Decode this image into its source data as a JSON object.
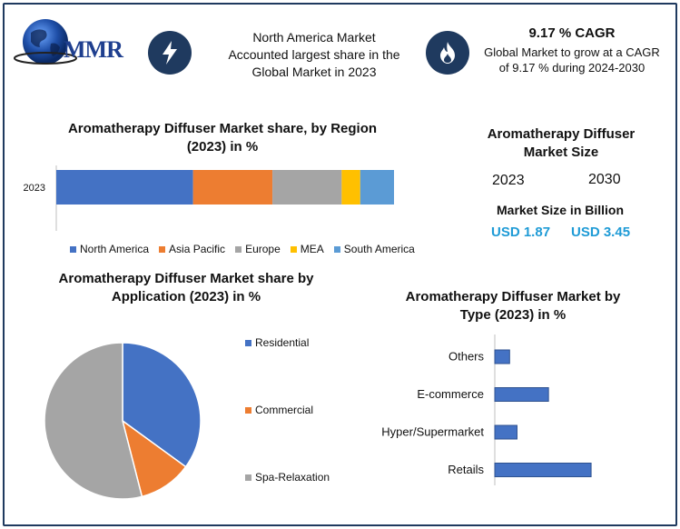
{
  "logo": {
    "text": "MMR"
  },
  "header": {
    "block1": {
      "icon": "lightning-icon",
      "text": "North America Market Accounted largest share in the Global Market in 2023"
    },
    "block2": {
      "icon": "flame-icon",
      "title": "9.17 % CAGR",
      "text": "Global Market to grow at a CAGR of 9.17 % during 2024-2030"
    }
  },
  "market_size": {
    "title": "Aromatherapy Diffuser Market Size",
    "year1": "2023",
    "year2": "2030",
    "subtitle": "Market Size in Billion",
    "value1": "USD 1.87",
    "value2": "USD 3.45"
  },
  "colors": {
    "blue": "#4472c4",
    "orange": "#ed7d31",
    "gray": "#a5a5a5",
    "yellow": "#ffc000",
    "lightblue": "#5b9bd5",
    "navy": "#1f3a5f",
    "usd": "#1f9bd6"
  },
  "chart_data": [
    {
      "type": "bar",
      "orientation": "horizontal-stacked",
      "title": "Aromatherapy Diffuser Market share, by Region (2023) in %",
      "categories": [
        "2023"
      ],
      "series": [
        {
          "name": "North America",
          "values": [
            40.5
          ]
        },
        {
          "name": "Asia Pacific",
          "values": [
            23.5
          ]
        },
        {
          "name": "Europe",
          "values": [
            20.5
          ]
        },
        {
          "name": "MEA",
          "values": [
            5.5
          ]
        },
        {
          "name": "South America",
          "values": [
            10.0
          ]
        }
      ],
      "xlim": [
        0,
        100
      ],
      "legend": "bottom",
      "grid": false
    },
    {
      "type": "pie",
      "title": "Aromatherapy Diffuser Market share by Application (2023) in %",
      "labels": [
        "Residential",
        "Commercial",
        "Spa-Relaxation"
      ],
      "values": [
        35,
        11,
        54
      ],
      "legend": "right"
    },
    {
      "type": "bar",
      "orientation": "horizontal",
      "title": "Aromatherapy Diffuser Market by Type (2023) in %",
      "categories": [
        "Others",
        "E-commerce",
        "Hyper/Supermarket",
        "Retails"
      ],
      "values": [
        8,
        29,
        12,
        52
      ],
      "xlim": [
        0,
        100
      ],
      "grid": false
    }
  ]
}
